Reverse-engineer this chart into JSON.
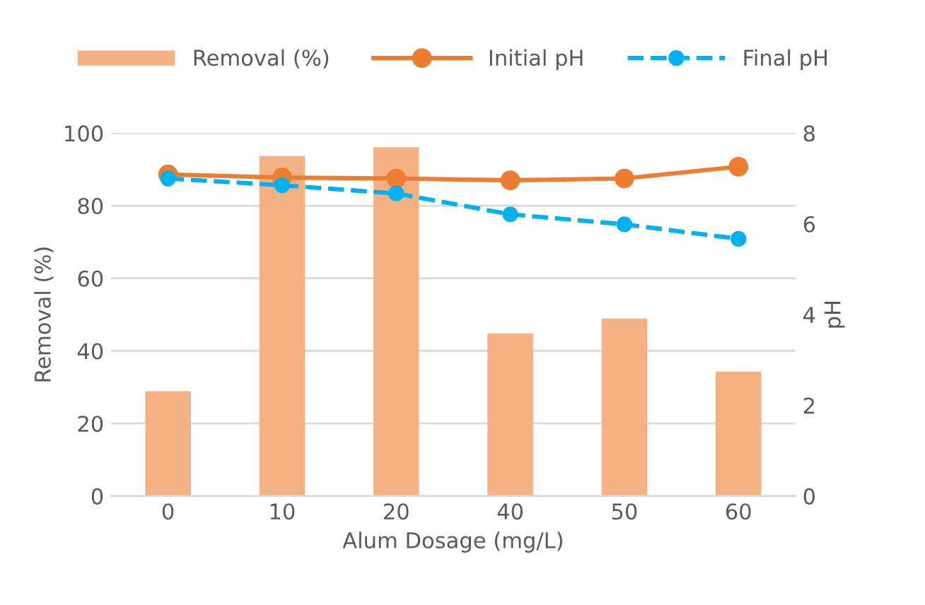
{
  "chart_data": {
    "type": "bar",
    "xlabel": "Alum Dosage (mg/L)",
    "ylabel": "Removal (%)",
    "y2label": "pH",
    "categories": [
      "0",
      "10",
      "20",
      "40",
      "50",
      "60"
    ],
    "series": [
      {
        "name": "Removal (%)",
        "color": "#f4b183",
        "values": [
          28.9,
          93.7,
          96.1,
          44.8,
          48.9,
          34.3
        ]
      },
      {
        "name": "Initial pH",
        "type": "line",
        "axis": "y2",
        "color": "#ed7d31",
        "marker": "circle",
        "line_style": "solid",
        "values": [
          7.09,
          7.02,
          7.0,
          6.96,
          7.0,
          7.26
        ]
      },
      {
        "name": "Final pH",
        "type": "line",
        "axis": "y2",
        "color": "#00b0f0",
        "marker": "circle",
        "line_style": "dashed",
        "values": [
          7.0,
          6.85,
          6.67,
          6.21,
          5.99,
          5.67
        ]
      }
    ],
    "ylim": [
      0,
      100
    ],
    "yticks": [
      0,
      20,
      40,
      60,
      80,
      100
    ],
    "y2lim": [
      0,
      8
    ],
    "y2ticks": [
      0,
      2,
      4,
      6,
      8
    ],
    "grid": "y",
    "legend": "top"
  }
}
